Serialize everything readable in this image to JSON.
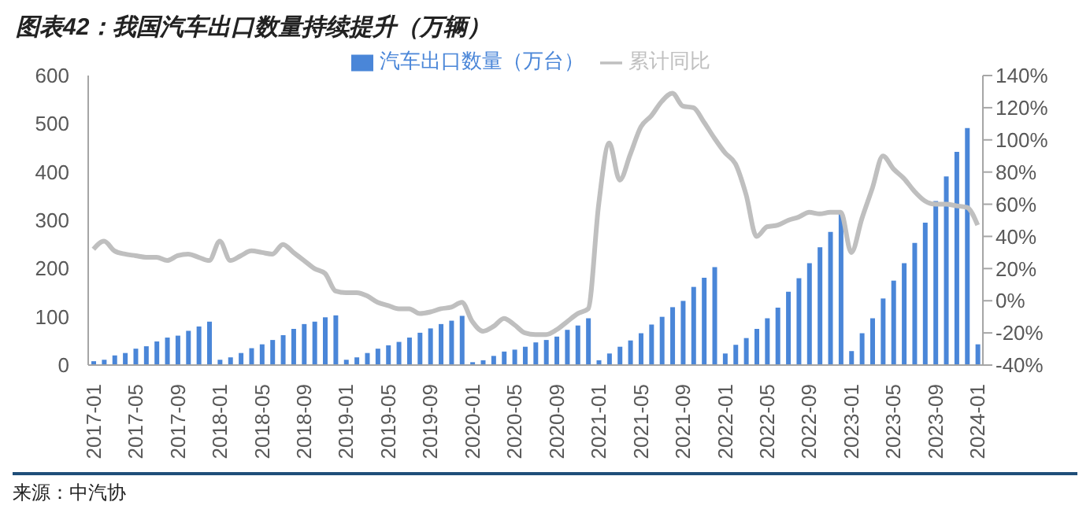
{
  "chart_data": {
    "type": "bar",
    "title": "图表42：我国汽车出口数量持续提升（万辆）",
    "categories": [
      "2017-01",
      null,
      null,
      null,
      "2017-05",
      null,
      null,
      null,
      "2017-09",
      null,
      null,
      null,
      "2018-01",
      null,
      null,
      null,
      "2018-05",
      null,
      null,
      null,
      "2018-09",
      null,
      null,
      null,
      "2019-01",
      null,
      null,
      null,
      "2019-05",
      null,
      null,
      null,
      "2019-09",
      null,
      null,
      null,
      "2020-01",
      null,
      null,
      null,
      "2020-05",
      null,
      null,
      null,
      "2020-09",
      null,
      null,
      null,
      "2021-01",
      null,
      null,
      null,
      "2021-05",
      null,
      null,
      null,
      "2021-09",
      null,
      null,
      null,
      "2022-01",
      null,
      null,
      null,
      "2022-05",
      null,
      null,
      null,
      "2022-09",
      null,
      null,
      null,
      "2023-01",
      null,
      null,
      null,
      "2023-05",
      null,
      null,
      null,
      "2023-09",
      null,
      null,
      null,
      "2024-01"
    ],
    "series": [
      {
        "name": "汽车出口数量（万台）",
        "color": "#4a86d8",
        "values": [
          8,
          11,
          20,
          25,
          34,
          39,
          49,
          57,
          61,
          71,
          80,
          90,
          11,
          16,
          25,
          35,
          43,
          52,
          62,
          75,
          85,
          90,
          99,
          103,
          11,
          16,
          25,
          34,
          41,
          48,
          57,
          67,
          76,
          85,
          92,
          102,
          6,
          10,
          19,
          28,
          32,
          38,
          47,
          52,
          59,
          73,
          82,
          97,
          10,
          24,
          38,
          51,
          66,
          84,
          100,
          120,
          133,
          162,
          181,
          203,
          24,
          42,
          56,
          75,
          97,
          119,
          152,
          180,
          211,
          244,
          276,
          313,
          29,
          66,
          97,
          138,
          175,
          211,
          253,
          295,
          340,
          391,
          442,
          491,
          43
        ]
      },
      {
        "name": "累计同比",
        "type": "line",
        "axis": "y2",
        "color": "#bfbfbf",
        "values": [
          32,
          37,
          31,
          29,
          28,
          27,
          27,
          25,
          28,
          29,
          27,
          25,
          37,
          25,
          28,
          31,
          30,
          29,
          35,
          30,
          25,
          20,
          17,
          6,
          5,
          5,
          3,
          -1,
          -3,
          -5,
          -5,
          -8,
          -7,
          -5,
          -4,
          -1,
          -13,
          -19,
          -16,
          -11,
          -15,
          -20,
          -21,
          -21,
          -18,
          -13,
          -8,
          -5,
          60,
          98,
          75,
          91,
          108,
          115,
          124,
          129,
          121,
          120,
          111,
          101,
          92,
          85,
          66,
          40,
          46,
          47,
          50,
          52,
          55,
          54,
          55,
          55,
          30,
          51,
          70,
          90,
          82,
          76,
          68,
          62,
          60,
          60,
          59,
          58,
          47
        ]
      }
    ],
    "ylim": [
      0,
      600
    ],
    "yticks": [
      0,
      100,
      200,
      300,
      400,
      500,
      600
    ],
    "y2lim": [
      -40,
      140
    ],
    "y2ticks": [
      {
        "value": -40,
        "label": "-40%"
      },
      {
        "value": -20,
        "label": "-20%"
      },
      {
        "value": 0,
        "label": "0%"
      },
      {
        "value": 20,
        "label": "20%"
      },
      {
        "value": 40,
        "label": "40%"
      },
      {
        "value": 60,
        "label": "60%"
      },
      {
        "value": 80,
        "label": "80%"
      },
      {
        "value": 100,
        "label": "100%"
      },
      {
        "value": 120,
        "label": "120%"
      },
      {
        "value": 140,
        "label": "140%"
      }
    ],
    "legend": "top",
    "grid": false,
    "marker": "none",
    "annotations": [
      "来源：中汽协"
    ]
  }
}
